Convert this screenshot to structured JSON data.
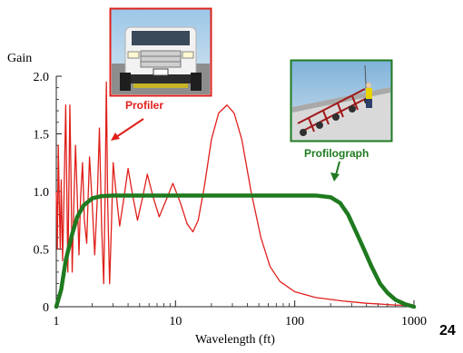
{
  "chart_data": {
    "type": "line",
    "ylabel": "Gain",
    "xlabel": "Wavelength (ft)",
    "xscale": "log",
    "xlim": [
      1,
      1000
    ],
    "ylim": [
      0,
      2.0
    ],
    "x_ticks": [
      {
        "value": 1,
        "label": "1"
      },
      {
        "value": 10,
        "label": "10"
      },
      {
        "value": 100,
        "label": "100"
      },
      {
        "value": 1000,
        "label": "1000"
      }
    ],
    "y_ticks": [
      {
        "value": 0,
        "label": "0"
      },
      {
        "value": 0.5,
        "label": "0.5"
      },
      {
        "value": 1.0,
        "label": "1.0"
      },
      {
        "value": 1.5,
        "label": "1.5"
      },
      {
        "value": 2.0,
        "label": "2.0"
      }
    ],
    "grid": false,
    "series": [
      {
        "name": "Profiler",
        "color": "#e0201b",
        "points": [
          [
            1.0,
            1.0
          ],
          [
            1.02,
            0.5
          ],
          [
            1.04,
            1.4
          ],
          [
            1.06,
            0.9
          ],
          [
            1.08,
            0.5
          ],
          [
            1.1,
            1.1
          ],
          [
            1.13,
            0.4
          ],
          [
            1.16,
            0.95
          ],
          [
            1.2,
            1.75
          ],
          [
            1.23,
            0.9
          ],
          [
            1.25,
            0.3
          ],
          [
            1.27,
            0.85
          ],
          [
            1.3,
            1.75
          ],
          [
            1.33,
            1.1
          ],
          [
            1.36,
            0.3
          ],
          [
            1.4,
            0.85
          ],
          [
            1.45,
            1.4
          ],
          [
            1.5,
            0.95
          ],
          [
            1.55,
            0.45
          ],
          [
            1.6,
            0.95
          ],
          [
            1.66,
            1.25
          ],
          [
            1.72,
            0.75
          ],
          [
            1.8,
            0.55
          ],
          [
            1.85,
            0.95
          ],
          [
            1.9,
            1.3
          ],
          [
            2.0,
            0.9
          ],
          [
            2.1,
            0.45
          ],
          [
            2.2,
            0.9
          ],
          [
            2.3,
            1.55
          ],
          [
            2.4,
            0.7
          ],
          [
            2.5,
            0.2
          ],
          [
            2.57,
            1.0
          ],
          [
            2.63,
            1.95
          ],
          [
            2.7,
            0.9
          ],
          [
            2.8,
            0.2
          ],
          [
            2.9,
            0.7
          ],
          [
            3.0,
            1.25
          ],
          [
            3.2,
            0.95
          ],
          [
            3.4,
            0.7
          ],
          [
            3.7,
            0.95
          ],
          [
            4.0,
            1.2
          ],
          [
            4.4,
            0.95
          ],
          [
            4.8,
            0.75
          ],
          [
            5.3,
            0.95
          ],
          [
            5.8,
            1.15
          ],
          [
            6.5,
            0.95
          ],
          [
            7.3,
            0.78
          ],
          [
            8.3,
            0.92
          ],
          [
            9.5,
            1.07
          ],
          [
            11,
            0.9
          ],
          [
            12.5,
            0.72
          ],
          [
            14,
            0.65
          ],
          [
            15.5,
            0.75
          ],
          [
            17.5,
            1.05
          ],
          [
            20,
            1.45
          ],
          [
            23,
            1.68
          ],
          [
            27,
            1.75
          ],
          [
            31,
            1.68
          ],
          [
            36,
            1.45
          ],
          [
            43,
            1.0
          ],
          [
            52,
            0.6
          ],
          [
            62,
            0.35
          ],
          [
            75,
            0.22
          ],
          [
            100,
            0.13
          ],
          [
            150,
            0.08
          ],
          [
            250,
            0.05
          ],
          [
            400,
            0.03
          ],
          [
            700,
            0.015
          ],
          [
            1000,
            0.01
          ]
        ]
      },
      {
        "name": "Profilograph",
        "color": "#1f7a1f",
        "points": [
          [
            1.0,
            0.0
          ],
          [
            1.1,
            0.15
          ],
          [
            1.2,
            0.4
          ],
          [
            1.35,
            0.62
          ],
          [
            1.5,
            0.78
          ],
          [
            1.7,
            0.88
          ],
          [
            2.0,
            0.94
          ],
          [
            2.4,
            0.96
          ],
          [
            3.0,
            0.965
          ],
          [
            10,
            0.965
          ],
          [
            50,
            0.965
          ],
          [
            150,
            0.965
          ],
          [
            200,
            0.95
          ],
          [
            240,
            0.9
          ],
          [
            280,
            0.8
          ],
          [
            320,
            0.67
          ],
          [
            380,
            0.5
          ],
          [
            440,
            0.35
          ],
          [
            520,
            0.2
          ],
          [
            600,
            0.12
          ],
          [
            700,
            0.06
          ],
          [
            850,
            0.02
          ],
          [
            1000,
            0.0
          ]
        ]
      }
    ],
    "annotations": [
      {
        "text": "Profiler",
        "color": "#e0201b"
      },
      {
        "text": "Profilograph",
        "color": "#1f7a1f"
      }
    ]
  },
  "slide_number": "24"
}
